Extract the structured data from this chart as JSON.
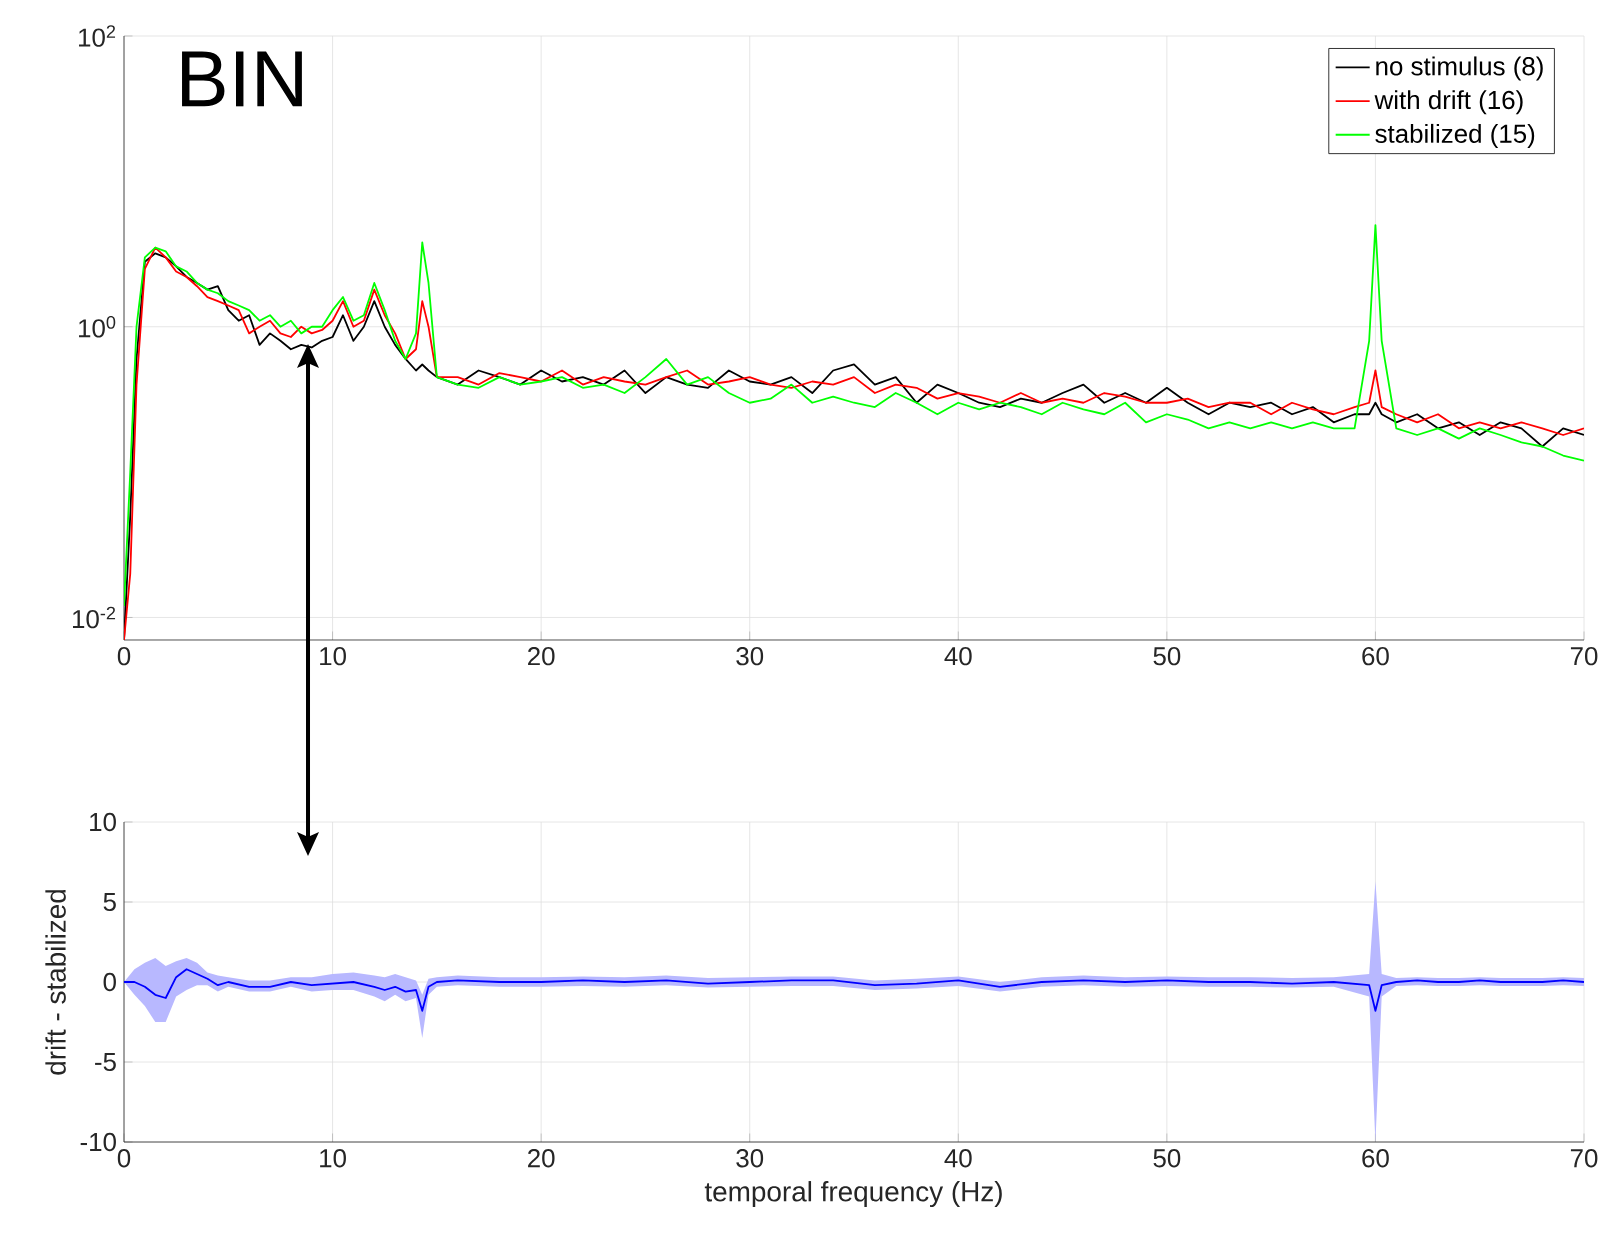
{
  "chart_data": [
    {
      "type": "line",
      "log": "y",
      "grid": true,
      "legend": "top right",
      "annotations": [
        "BIN"
      ],
      "xlim": [
        0,
        70
      ],
      "xticks": [
        0,
        10,
        20,
        30,
        40,
        50,
        60,
        70
      ],
      "ylim": [
        0.007,
        100
      ],
      "yticks": [
        {
          "value": 0.01,
          "label": "10$^{-2}$"
        },
        {
          "value": 1,
          "label": "10$^{0}$"
        },
        {
          "value": 100,
          "label": "10$^{2}$"
        }
      ],
      "x": [
        0,
        0.3,
        0.6,
        1,
        1.5,
        2,
        2.5,
        3,
        3.5,
        4,
        4.5,
        5,
        5.5,
        6,
        6.5,
        7,
        7.5,
        8,
        8.5,
        9,
        9.5,
        10,
        10.5,
        11,
        11.5,
        12,
        12.5,
        13,
        13.5,
        14,
        14.3,
        14.6,
        15,
        16,
        17,
        18,
        19,
        20,
        21,
        22,
        23,
        24,
        25,
        26,
        27,
        28,
        29,
        30,
        31,
        32,
        33,
        34,
        35,
        36,
        37,
        38,
        39,
        40,
        41,
        42,
        43,
        44,
        45,
        46,
        47,
        48,
        49,
        50,
        51,
        52,
        53,
        54,
        55,
        56,
        57,
        58,
        59,
        59.7,
        60,
        60.3,
        61,
        62,
        63,
        64,
        65,
        66,
        67,
        68,
        69,
        70
      ],
      "series": [
        {
          "name": "no stimulus (8)",
          "color": "#000000",
          "values": [
            0.007,
            0.05,
            0.6,
            2.8,
            3.2,
            3.0,
            2.6,
            2.2,
            2.0,
            1.8,
            1.9,
            1.3,
            1.1,
            1.2,
            0.75,
            0.9,
            0.8,
            0.7,
            0.75,
            0.72,
            0.8,
            0.85,
            1.2,
            0.8,
            1.0,
            1.5,
            1.0,
            0.75,
            0.6,
            0.5,
            0.55,
            0.5,
            0.45,
            0.4,
            0.5,
            0.45,
            0.4,
            0.5,
            0.42,
            0.45,
            0.4,
            0.5,
            0.35,
            0.45,
            0.4,
            0.38,
            0.5,
            0.42,
            0.4,
            0.45,
            0.35,
            0.5,
            0.55,
            0.4,
            0.45,
            0.3,
            0.4,
            0.35,
            0.3,
            0.28,
            0.32,
            0.3,
            0.35,
            0.4,
            0.3,
            0.35,
            0.3,
            0.38,
            0.3,
            0.25,
            0.3,
            0.28,
            0.3,
            0.25,
            0.28,
            0.22,
            0.25,
            0.25,
            0.3,
            0.25,
            0.22,
            0.25,
            0.2,
            0.22,
            0.18,
            0.22,
            0.2,
            0.15,
            0.2,
            0.18
          ]
        },
        {
          "name": "with drift (16)",
          "color": "#ff0000",
          "values": [
            0.007,
            0.02,
            0.4,
            2.5,
            3.5,
            3.0,
            2.4,
            2.2,
            1.9,
            1.6,
            1.5,
            1.4,
            1.3,
            0.9,
            1.0,
            1.1,
            0.9,
            0.85,
            1.0,
            0.9,
            0.95,
            1.1,
            1.5,
            1.0,
            1.1,
            1.8,
            1.2,
            0.9,
            0.6,
            0.7,
            1.5,
            1.0,
            0.45,
            0.45,
            0.4,
            0.48,
            0.45,
            0.42,
            0.5,
            0.4,
            0.45,
            0.42,
            0.4,
            0.45,
            0.5,
            0.4,
            0.42,
            0.45,
            0.4,
            0.38,
            0.42,
            0.4,
            0.45,
            0.35,
            0.4,
            0.38,
            0.32,
            0.35,
            0.33,
            0.3,
            0.35,
            0.3,
            0.32,
            0.3,
            0.35,
            0.33,
            0.3,
            0.3,
            0.32,
            0.28,
            0.3,
            0.3,
            0.25,
            0.3,
            0.27,
            0.25,
            0.28,
            0.3,
            0.5,
            0.28,
            0.25,
            0.22,
            0.25,
            0.2,
            0.22,
            0.2,
            0.22,
            0.2,
            0.18,
            0.2
          ]
        },
        {
          "name": "stabilized (15)",
          "color": "#00ff00",
          "values": [
            0.012,
            0.1,
            1.0,
            3.0,
            3.5,
            3.3,
            2.6,
            2.4,
            2.0,
            1.8,
            1.7,
            1.5,
            1.4,
            1.3,
            1.1,
            1.2,
            1.0,
            1.1,
            0.9,
            1.0,
            1.0,
            1.3,
            1.6,
            1.1,
            1.2,
            2.0,
            1.3,
            0.8,
            0.6,
            0.9,
            3.8,
            2.0,
            0.45,
            0.4,
            0.38,
            0.45,
            0.4,
            0.42,
            0.45,
            0.38,
            0.4,
            0.35,
            0.45,
            0.6,
            0.4,
            0.45,
            0.35,
            0.3,
            0.32,
            0.4,
            0.3,
            0.33,
            0.3,
            0.28,
            0.35,
            0.3,
            0.25,
            0.3,
            0.27,
            0.3,
            0.28,
            0.25,
            0.3,
            0.27,
            0.25,
            0.3,
            0.22,
            0.25,
            0.23,
            0.2,
            0.22,
            0.2,
            0.22,
            0.2,
            0.22,
            0.2,
            0.2,
            0.8,
            5,
            0.8,
            0.2,
            0.18,
            0.2,
            0.17,
            0.2,
            0.18,
            0.16,
            0.15,
            0.13,
            0.12
          ]
        }
      ]
    },
    {
      "type": "line",
      "grid": true,
      "xlabel": "temporal frequency (Hz)",
      "ylabel": "drift - stabilized",
      "xlim": [
        0,
        70
      ],
      "xticks": [
        0,
        10,
        20,
        30,
        40,
        50,
        60,
        70
      ],
      "ylim": [
        -10,
        10
      ],
      "yticks": [
        -10,
        -5,
        0,
        5,
        10
      ],
      "x": [
        0,
        0.5,
        1,
        1.5,
        2,
        2.5,
        3,
        3.5,
        4,
        4.5,
        5,
        6,
        7,
        8,
        9,
        10,
        11,
        12,
        12.5,
        13,
        13.5,
        14,
        14.3,
        14.6,
        15,
        16,
        18,
        20,
        22,
        24,
        26,
        28,
        30,
        32,
        34,
        36,
        38,
        40,
        42,
        44,
        46,
        48,
        50,
        52,
        54,
        56,
        58,
        59.7,
        60,
        60.3,
        61,
        62,
        63,
        64,
        65,
        66,
        67,
        68,
        69,
        70
      ],
      "series": [
        {
          "color": "#0000ff",
          "values": [
            0,
            0,
            -0.3,
            -0.8,
            -1.0,
            0.3,
            0.8,
            0.5,
            0.2,
            -0.2,
            0,
            -0.3,
            -0.3,
            0,
            -0.2,
            -0.1,
            0,
            -0.3,
            -0.5,
            -0.3,
            -0.6,
            -0.5,
            -1.8,
            -0.3,
            0,
            0.1,
            0,
            0,
            0.1,
            0,
            0.1,
            -0.1,
            0,
            0.1,
            0.1,
            -0.2,
            -0.1,
            0.1,
            -0.3,
            0,
            0.1,
            0,
            0.1,
            0,
            0,
            -0.1,
            0,
            -0.2,
            -1.8,
            -0.2,
            0,
            0.1,
            0,
            0,
            0.1,
            0,
            0,
            0,
            0.1,
            0
          ],
          "upper": [
            0,
            0.8,
            1.2,
            1.5,
            1.0,
            1.3,
            1.5,
            1.2,
            0.6,
            0.4,
            0.3,
            0.1,
            0.1,
            0.3,
            0.3,
            0.5,
            0.6,
            0.4,
            0.3,
            0.5,
            0.3,
            0.1,
            -0.8,
            0.2,
            0.3,
            0.4,
            0.3,
            0.3,
            0.35,
            0.3,
            0.4,
            0.25,
            0.3,
            0.35,
            0.35,
            0.1,
            0.2,
            0.35,
            0,
            0.3,
            0.4,
            0.3,
            0.35,
            0.3,
            0.3,
            0.25,
            0.3,
            0.5,
            6.3,
            0.5,
            0.25,
            0.3,
            0.25,
            0.25,
            0.3,
            0.25,
            0.25,
            0.25,
            0.3,
            0.25
          ],
          "lower": [
            0,
            -0.8,
            -1.5,
            -2.5,
            -2.5,
            -0.9,
            -0.5,
            -0.2,
            -0.2,
            -0.6,
            -0.3,
            -0.6,
            -0.6,
            -0.3,
            -0.6,
            -0.5,
            -0.5,
            -0.9,
            -1.2,
            -0.8,
            -1.2,
            -1.0,
            -3.5,
            -0.8,
            -0.3,
            -0.2,
            -0.3,
            -0.3,
            -0.25,
            -0.3,
            -0.2,
            -0.35,
            -0.3,
            -0.25,
            -0.25,
            -0.5,
            -0.4,
            -0.25,
            -0.6,
            -0.3,
            -0.2,
            -0.3,
            -0.25,
            -0.3,
            -0.3,
            -0.35,
            -0.3,
            -0.9,
            -10,
            -0.9,
            -0.25,
            -0.2,
            -0.25,
            -0.25,
            -0.2,
            -0.25,
            -0.25,
            -0.25,
            -0.2,
            -0.25
          ]
        }
      ]
    }
  ]
}
